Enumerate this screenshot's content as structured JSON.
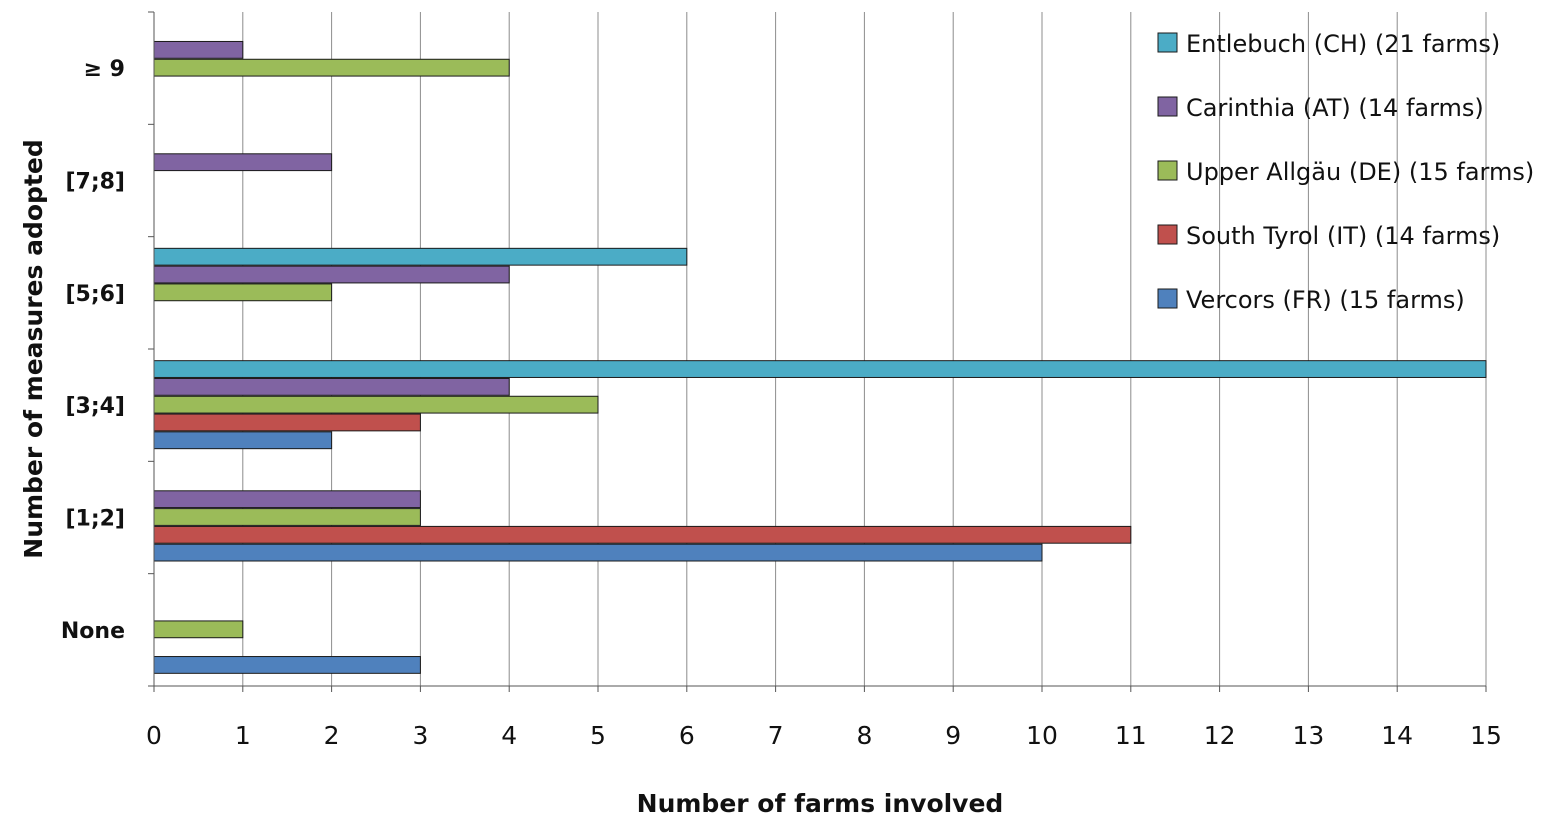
{
  "chart_data": {
    "type": "bar",
    "orientation": "horizontal",
    "categories": [
      "≥ 9",
      "[7;8]",
      "[5;6]",
      "[3;4]",
      "[1;2]",
      "None"
    ],
    "series": [
      {
        "name": "Entlebuch (CH) (21 farms)",
        "color": "#4bacc6",
        "values": [
          0,
          0,
          6,
          15,
          0,
          0
        ]
      },
      {
        "name": "Carinthia (AT) (14 farms)",
        "color": "#8064a2",
        "values": [
          1,
          2,
          4,
          4,
          3,
          0
        ]
      },
      {
        "name": "Upper Allgäu (DE) (15 farms)",
        "color": "#9bbb59",
        "values": [
          4,
          0,
          2,
          5,
          3,
          1
        ]
      },
      {
        "name": "South Tyrol (IT) (14 farms)",
        "color": "#c0504d",
        "values": [
          0,
          0,
          0,
          3,
          11,
          0
        ]
      },
      {
        "name": "Vercors (FR) (15 farms)",
        "color": "#4f81bd",
        "values": [
          0,
          0,
          0,
          2,
          10,
          3
        ]
      }
    ],
    "xlabel": "Number of farms involved",
    "ylabel": "Number of measures adopted",
    "xlim": [
      0,
      15
    ],
    "xticks": [
      "0",
      "1",
      "2",
      "3",
      "4",
      "5",
      "6",
      "7",
      "8",
      "9",
      "10",
      "11",
      "12",
      "13",
      "14",
      "15"
    ],
    "grid": "vertical",
    "legend_position": "top-right"
  }
}
